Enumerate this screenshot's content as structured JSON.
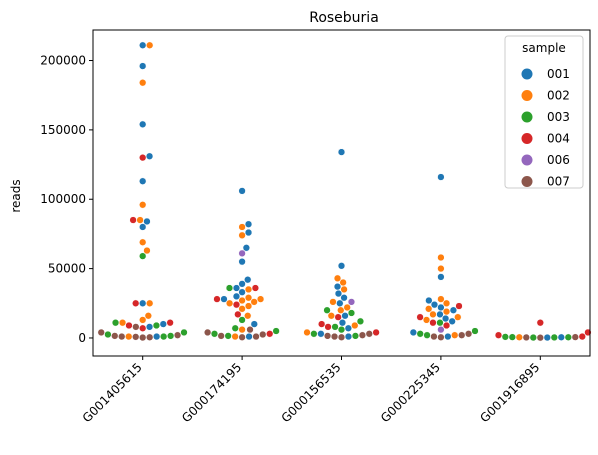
{
  "chart_data": {
    "type": "scatter",
    "subtype": "swarm",
    "title": "Roseburia",
    "xlabel": "",
    "ylabel": "reads",
    "categories": [
      "G001405615",
      "G000174195",
      "G000156535",
      "G000225345",
      "G001916895"
    ],
    "ylim": [
      -13000,
      222000
    ],
    "yticks": [
      0,
      50000,
      100000,
      150000,
      200000
    ],
    "ytick_labels": [
      "0",
      "50000",
      "100000",
      "150000",
      "200000"
    ],
    "grid": false,
    "legend": {
      "title": "sample",
      "placement": "top-right",
      "entries": [
        {
          "label": "001",
          "color": "#1f77b4"
        },
        {
          "label": "002",
          "color": "#ff7f0e"
        },
        {
          "label": "003",
          "color": "#2ca02c"
        },
        {
          "label": "004",
          "color": "#d62728"
        },
        {
          "label": "006",
          "color": "#9467bd"
        },
        {
          "label": "007",
          "color": "#8c564b"
        }
      ]
    },
    "series": [
      {
        "name": "001",
        "color": "#1f77b4",
        "points": [
          {
            "x": "G001405615",
            "y": 211000
          },
          {
            "x": "G001405615",
            "y": 196000
          },
          {
            "x": "G001405615",
            "y": 154000
          },
          {
            "x": "G001405615",
            "y": 131000
          },
          {
            "x": "G001405615",
            "y": 113000
          },
          {
            "x": "G001405615",
            "y": 84000
          },
          {
            "x": "G001405615",
            "y": 80000
          },
          {
            "x": "G001405615",
            "y": 25000
          },
          {
            "x": "G001405615",
            "y": 10000
          },
          {
            "x": "G001405615",
            "y": 8000
          },
          {
            "x": "G001405615",
            "y": 1000
          },
          {
            "x": "G000174195",
            "y": 106000
          },
          {
            "x": "G000174195",
            "y": 82000
          },
          {
            "x": "G000174195",
            "y": 76000
          },
          {
            "x": "G000174195",
            "y": 65000
          },
          {
            "x": "G000174195",
            "y": 55000
          },
          {
            "x": "G000174195",
            "y": 42000
          },
          {
            "x": "G000174195",
            "y": 39000
          },
          {
            "x": "G000174195",
            "y": 36000
          },
          {
            "x": "G000174195",
            "y": 33000
          },
          {
            "x": "G000174195",
            "y": 30000
          },
          {
            "x": "G000174195",
            "y": 28000
          },
          {
            "x": "G000174195",
            "y": 10000
          },
          {
            "x": "G000174195",
            "y": 1000
          },
          {
            "x": "G000156535",
            "y": 134000
          },
          {
            "x": "G000156535",
            "y": 52000
          },
          {
            "x": "G000156535",
            "y": 37000
          },
          {
            "x": "G000156535",
            "y": 32000
          },
          {
            "x": "G000156535",
            "y": 29000
          },
          {
            "x": "G000156535",
            "y": 25000
          },
          {
            "x": "G000156535",
            "y": 16000
          },
          {
            "x": "G000156535",
            "y": 11000
          },
          {
            "x": "G000156535",
            "y": 7000
          },
          {
            "x": "G000156535",
            "y": 3000
          },
          {
            "x": "G000156535",
            "y": 1000
          },
          {
            "x": "G000225345",
            "y": 116000
          },
          {
            "x": "G000225345",
            "y": 44000
          },
          {
            "x": "G000225345",
            "y": 27000
          },
          {
            "x": "G000225345",
            "y": 24000
          },
          {
            "x": "G000225345",
            "y": 22000
          },
          {
            "x": "G000225345",
            "y": 20000
          },
          {
            "x": "G000225345",
            "y": 17000
          },
          {
            "x": "G000225345",
            "y": 14000
          },
          {
            "x": "G000225345",
            "y": 12000
          },
          {
            "x": "G000225345",
            "y": 4000
          },
          {
            "x": "G000225345",
            "y": 1000
          },
          {
            "x": "G001916895",
            "y": 500
          },
          {
            "x": "G001916895",
            "y": 300
          }
        ]
      },
      {
        "name": "002",
        "color": "#ff7f0e",
        "points": [
          {
            "x": "G001405615",
            "y": 211000
          },
          {
            "x": "G001405615",
            "y": 184000
          },
          {
            "x": "G001405615",
            "y": 96000
          },
          {
            "x": "G001405615",
            "y": 85000
          },
          {
            "x": "G001405615",
            "y": 69000
          },
          {
            "x": "G001405615",
            "y": 63000
          },
          {
            "x": "G001405615",
            "y": 25000
          },
          {
            "x": "G001405615",
            "y": 16000
          },
          {
            "x": "G001405615",
            "y": 13000
          },
          {
            "x": "G001405615",
            "y": 11000
          },
          {
            "x": "G001405615",
            "y": 1000
          },
          {
            "x": "G000174195",
            "y": 80000
          },
          {
            "x": "G000174195",
            "y": 74000
          },
          {
            "x": "G000174195",
            "y": 35000
          },
          {
            "x": "G000174195",
            "y": 29000
          },
          {
            "x": "G000174195",
            "y": 28000
          },
          {
            "x": "G000174195",
            "y": 27000
          },
          {
            "x": "G000174195",
            "y": 26000
          },
          {
            "x": "G000174195",
            "y": 25000
          },
          {
            "x": "G000174195",
            "y": 23000
          },
          {
            "x": "G000174195",
            "y": 21000
          },
          {
            "x": "G000174195",
            "y": 16000
          },
          {
            "x": "G000174195",
            "y": 6000
          },
          {
            "x": "G000174195",
            "y": 1000
          },
          {
            "x": "G000156535",
            "y": 43000
          },
          {
            "x": "G000156535",
            "y": 40000
          },
          {
            "x": "G000156535",
            "y": 35000
          },
          {
            "x": "G000156535",
            "y": 26000
          },
          {
            "x": "G000156535",
            "y": 22000
          },
          {
            "x": "G000156535",
            "y": 20000
          },
          {
            "x": "G000156535",
            "y": 16000
          },
          {
            "x": "G000156535",
            "y": 9000
          },
          {
            "x": "G000156535",
            "y": 4000
          },
          {
            "x": "G000225345",
            "y": 58000
          },
          {
            "x": "G000225345",
            "y": 50000
          },
          {
            "x": "G000225345",
            "y": 28000
          },
          {
            "x": "G000225345",
            "y": 25000
          },
          {
            "x": "G000225345",
            "y": 21000
          },
          {
            "x": "G000225345",
            "y": 19000
          },
          {
            "x": "G000225345",
            "y": 17000
          },
          {
            "x": "G000225345",
            "y": 15000
          },
          {
            "x": "G000225345",
            "y": 13000
          },
          {
            "x": "G000225345",
            "y": 2000
          },
          {
            "x": "G001916895",
            "y": 500
          }
        ]
      },
      {
        "name": "003",
        "color": "#2ca02c",
        "points": [
          {
            "x": "G001405615",
            "y": 59000
          },
          {
            "x": "G001405615",
            "y": 11000
          },
          {
            "x": "G001405615",
            "y": 9000
          },
          {
            "x": "G001405615",
            "y": 4000
          },
          {
            "x": "G001405615",
            "y": 2500
          },
          {
            "x": "G001405615",
            "y": 1500
          },
          {
            "x": "G001405615",
            "y": 1000
          },
          {
            "x": "G000174195",
            "y": 36000
          },
          {
            "x": "G000174195",
            "y": 13000
          },
          {
            "x": "G000174195",
            "y": 7000
          },
          {
            "x": "G000174195",
            "y": 5000
          },
          {
            "x": "G000174195",
            "y": 3000
          },
          {
            "x": "G000174195",
            "y": 1500
          },
          {
            "x": "G000156535",
            "y": 20000
          },
          {
            "x": "G000156535",
            "y": 18000
          },
          {
            "x": "G000156535",
            "y": 12000
          },
          {
            "x": "G000156535",
            "y": 8000
          },
          {
            "x": "G000156535",
            "y": 6000
          },
          {
            "x": "G000156535",
            "y": 3000
          },
          {
            "x": "G000156535",
            "y": 1500
          },
          {
            "x": "G000225345",
            "y": 11000
          },
          {
            "x": "G000225345",
            "y": 5000
          },
          {
            "x": "G000225345",
            "y": 3000
          },
          {
            "x": "G000225345",
            "y": 2000
          },
          {
            "x": "G001916895",
            "y": 800
          },
          {
            "x": "G001916895",
            "y": 600
          },
          {
            "x": "G001916895",
            "y": 500
          },
          {
            "x": "G001916895",
            "y": 400
          },
          {
            "x": "G001916895",
            "y": 300
          }
        ]
      },
      {
        "name": "004",
        "color": "#d62728",
        "points": [
          {
            "x": "G001405615",
            "y": 130000
          },
          {
            "x": "G001405615",
            "y": 85000
          },
          {
            "x": "G001405615",
            "y": 25000
          },
          {
            "x": "G001405615",
            "y": 11000
          },
          {
            "x": "G001405615",
            "y": 9000
          },
          {
            "x": "G001405615",
            "y": 7000
          },
          {
            "x": "G000174195",
            "y": 36000
          },
          {
            "x": "G000174195",
            "y": 28000
          },
          {
            "x": "G000174195",
            "y": 24000
          },
          {
            "x": "G000174195",
            "y": 17000
          },
          {
            "x": "G000174195",
            "y": 3000
          },
          {
            "x": "G000156535",
            "y": 15000
          },
          {
            "x": "G000156535",
            "y": 10000
          },
          {
            "x": "G000156535",
            "y": 8000
          },
          {
            "x": "G000156535",
            "y": 4000
          },
          {
            "x": "G000225345",
            "y": 23000
          },
          {
            "x": "G000225345",
            "y": 15000
          },
          {
            "x": "G000225345",
            "y": 11000
          },
          {
            "x": "G000225345",
            "y": 9000
          },
          {
            "x": "G001916895",
            "y": 11000
          },
          {
            "x": "G001916895",
            "y": 4000
          },
          {
            "x": "G001916895",
            "y": 2000
          },
          {
            "x": "G001916895",
            "y": 1000
          }
        ]
      },
      {
        "name": "006",
        "color": "#9467bd",
        "points": [
          {
            "x": "G000174195",
            "y": 61000
          },
          {
            "x": "G000156535",
            "y": 26000
          },
          {
            "x": "G000225345",
            "y": 6000
          }
        ]
      },
      {
        "name": "007",
        "color": "#8c564b",
        "points": [
          {
            "x": "G001405615",
            "y": 8000
          },
          {
            "x": "G001405615",
            "y": 4000
          },
          {
            "x": "G001405615",
            "y": 2000
          },
          {
            "x": "G001405615",
            "y": 1500
          },
          {
            "x": "G001405615",
            "y": 1000
          },
          {
            "x": "G001405615",
            "y": 800
          },
          {
            "x": "G001405615",
            "y": 500
          },
          {
            "x": "G001405615",
            "y": 300
          },
          {
            "x": "G000174195",
            "y": 6000
          },
          {
            "x": "G000174195",
            "y": 4000
          },
          {
            "x": "G000174195",
            "y": 2500
          },
          {
            "x": "G000174195",
            "y": 1500
          },
          {
            "x": "G000174195",
            "y": 1000
          },
          {
            "x": "G000174195",
            "y": 500
          },
          {
            "x": "G000156535",
            "y": 3000
          },
          {
            "x": "G000156535",
            "y": 2000
          },
          {
            "x": "G000156535",
            "y": 1500
          },
          {
            "x": "G000156535",
            "y": 1000
          },
          {
            "x": "G000156535",
            "y": 500
          },
          {
            "x": "G000225345",
            "y": 3000
          },
          {
            "x": "G000225345",
            "y": 2000
          },
          {
            "x": "G000225345",
            "y": 1000
          },
          {
            "x": "G000225345",
            "y": 500
          },
          {
            "x": "G001916895",
            "y": 600
          },
          {
            "x": "G001916895",
            "y": 400
          },
          {
            "x": "G001916895",
            "y": 200
          }
        ]
      }
    ]
  }
}
